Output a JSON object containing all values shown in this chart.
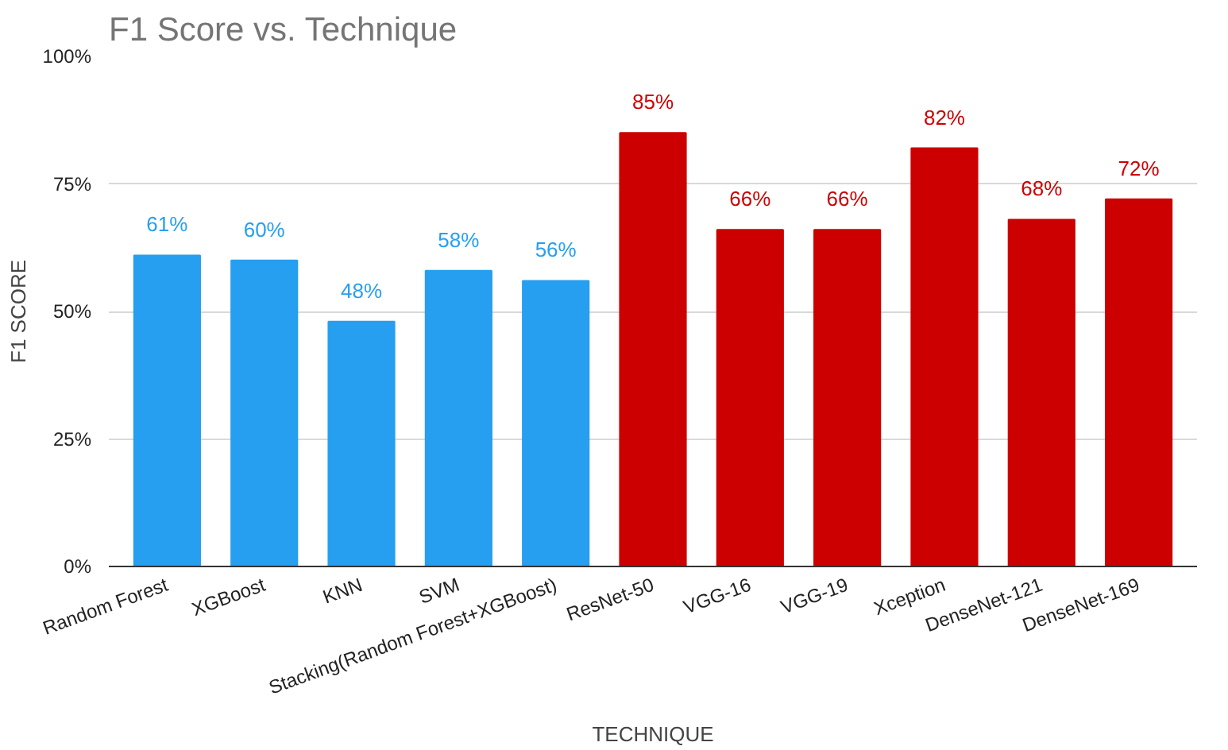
{
  "chart_data": {
    "type": "bar",
    "title": "F1 Score vs. Technique",
    "xlabel": "TECHNIQUE",
    "ylabel": "F1 SCORE",
    "categories": [
      "Random Forest",
      "XGBoost",
      "KNN",
      "SVM",
      "Stacking(Random Forest+XGBoost)",
      "ResNet-50",
      "VGG-16",
      "VGG-19",
      "Xception",
      "DenseNet-121",
      "DenseNet-169"
    ],
    "values": [
      61,
      60,
      48,
      58,
      56,
      85,
      66,
      66,
      82,
      68,
      72
    ],
    "value_labels": [
      "61%",
      "60%",
      "48%",
      "58%",
      "56%",
      "85%",
      "66%",
      "66%",
      "82%",
      "68%",
      "72%"
    ],
    "colors": [
      "#279ff0",
      "#279ff0",
      "#279ff0",
      "#279ff0",
      "#279ff0",
      "#cc0000",
      "#cc0000",
      "#cc0000",
      "#cc0000",
      "#cc0000",
      "#cc0000"
    ],
    "ylim": [
      0,
      100
    ],
    "yticks": [
      {
        "value": 0,
        "label": "0%"
      },
      {
        "value": 25,
        "label": "25%"
      },
      {
        "value": 50,
        "label": "50%"
      },
      {
        "value": 75,
        "label": "75%"
      },
      {
        "value": 100,
        "label": "100%"
      }
    ],
    "grid": "y"
  }
}
